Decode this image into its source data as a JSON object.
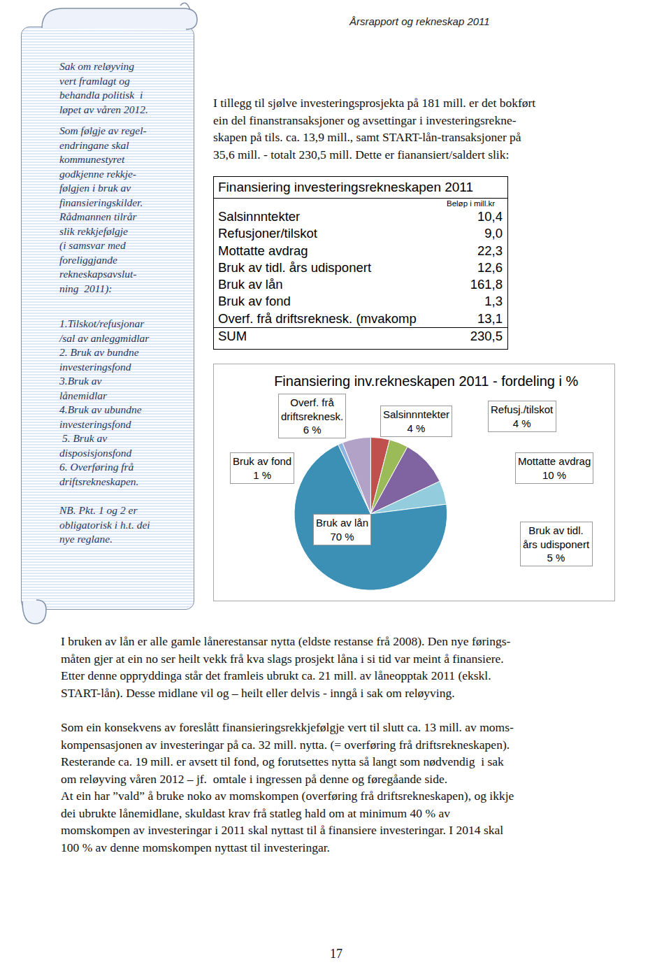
{
  "header": "Årsrapport og rekneskap 2011",
  "sidebar": {
    "paragraphs": [
      [
        "Sak om reløyving",
        "vert framlagt og",
        "behandla politisk  i",
        "løpet av våren 2012."
      ],
      [
        "Som følgje av regel-",
        "endringane skal",
        "kommunestyret",
        "godkjenne rekkje-",
        "følgjen i bruk av",
        "finansieringskilder.",
        "Rådmannen tilrår",
        "slik rekkjefølgje",
        "(i samsvar med",
        "foreliggjande",
        "rekneskapsavslut-",
        "ning  2011):"
      ],
      [
        "1.Tilskot/refusjonar",
        "/sal av anleggmidlar",
        "2. Bruk av bundne",
        "investeringsfond",
        "3.Bruk av",
        "lånemidlar",
        "4.Bruk av ubundne",
        "investeringsfond",
        " 5. Bruk av",
        "disposisjonsfond",
        "6. Overføring frå",
        "driftsrekneskapen."
      ],
      [
        "NB. Pkt. 1 og 2 er",
        "obligatorisk i h.t. dei",
        "nye reglane."
      ]
    ]
  },
  "intro": [
    "I tillegg til sjølve investeringsprosjekta på 181 mill. er det bokført",
    "ein del finanstransaksjoner og avsettingar i investeringsrekne-",
    "skapen på tils. ca. 13,9 mill., samt START-lån-transaksjoner på",
    "35,6 mill. - totalt 230,5 mill. Dette er fianansiert/saldert slik:"
  ],
  "table": {
    "title": "Finansiering investeringsrekneskapen 2011",
    "unit": "Beløp i mill.kr",
    "rows": [
      [
        "Salsinnntekter",
        "10,4"
      ],
      [
        "Refusjoner/tilskot",
        "9,0"
      ],
      [
        "Mottatte avdrag",
        "22,3"
      ],
      [
        "Bruk av tidl. års udisponert",
        "12,6"
      ],
      [
        "Bruk av lån",
        "161,8"
      ],
      [
        "Bruk av fond",
        "1,3"
      ],
      [
        "Overf. frå driftsreknesk. (mvakomp",
        "13,1"
      ]
    ],
    "total": [
      "SUM",
      "230,5"
    ]
  },
  "chart_data": {
    "type": "pie",
    "title": "Finansiering inv.rekneskapen 2011 - fordeling i %",
    "categories": [
      "Salsinnntekter",
      "Refusj./tilskot",
      "Mottatte avdrag",
      "Bruk av tidl. års udisponert",
      "Bruk av lån",
      "Bruk av fond",
      "Overf. frå driftsreknesk."
    ],
    "values": [
      4,
      4,
      10,
      5,
      70,
      1,
      6
    ],
    "value_labels": [
      "4 %",
      "4 %",
      "10 %",
      "5 %",
      "70 %",
      "1 %",
      "6 %"
    ],
    "colors": [
      "#c0504d",
      "#9bbb59",
      "#8064a2",
      "#93cddd",
      "#3c8fb5",
      "#8eb4e3",
      "#b3a2c7"
    ],
    "data_labels": true
  },
  "body": [
    [
      "I bruken av lån er alle gamle lånerestansar nytta (eldste restanse frå 2008). Den nye førings-",
      "måten gjer at ein no ser heilt vekk frå kva slags prosjekt låna i si tid var meint å finansiere.",
      "Etter denne oppryddinga står det framleis ubrukt ca. 21 mill. av låneopptak 2011 (ekskl.",
      "START-lån). Desse midlane vil og – heilt eller delvis - inngå i sak om reløyving."
    ],
    [
      "Som ein konsekvens av foreslått finansieringsrekkjefølgje vert til slutt ca. 13 mill. av moms-",
      "kompensasjonen av investeringar på ca. 32 mill. nytta. (= overføring frå driftsrekneskapen).",
      "Resterande ca. 19 mill. er avsett til fond, og forutsettes nytta så langt som nødvendig  i sak",
      "om reløyving våren 2012 – jf.  omtale i ingressen på denne og føregåande side.",
      "At ein har ”vald” å bruke noko av momskompen (overføring frå driftsrekneskapen), og ikkje",
      "dei ubrukte lånemidlane, skuldast krav frå statleg hald om at minimum 40 % av",
      "momskompen av investeringar i 2011 skal nyttast til å finansiere investeringar. I 2014 skal",
      "100 % av denne momskompen nyttast til investeringar."
    ]
  ],
  "page_number": "17"
}
